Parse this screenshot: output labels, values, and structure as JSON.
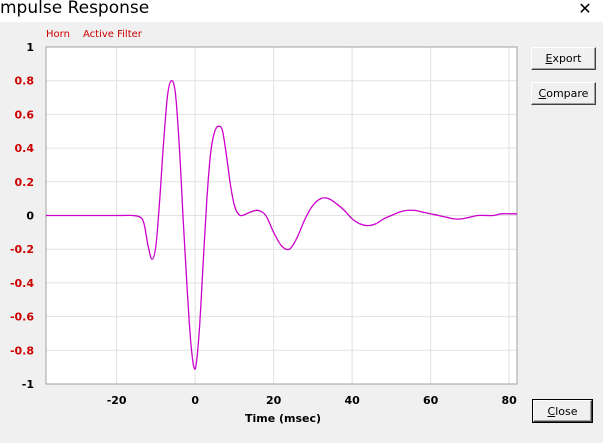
{
  "window": {
    "title": "mpulse Response",
    "close_glyph": "✕"
  },
  "legend": {
    "items": [
      {
        "label": "Horn",
        "color": "#cc0000"
      },
      {
        "label": "Active Filter",
        "color": "#cc0000"
      }
    ]
  },
  "buttons": {
    "export_label": "Export",
    "compare_label": "Compare",
    "close_label": "Close"
  },
  "chart_data": {
    "type": "line",
    "title": "",
    "xlabel": "Time (msec)",
    "ylabel": "",
    "xlim": [
      -38,
      82
    ],
    "ylim": [
      -1,
      1
    ],
    "x_ticks": [
      -20,
      0,
      20,
      40,
      60,
      80
    ],
    "y_ticks": [
      1,
      0.8,
      0.6,
      0.4,
      0.2,
      0,
      -0.2,
      -0.4,
      -0.6,
      -0.8,
      -1
    ],
    "y_tick_labels": [
      "1",
      "0.8",
      "0.6",
      "0.4",
      "0.2",
      "0",
      "-0.2",
      "-0.4",
      "-0.6",
      "-0.8",
      "-1"
    ],
    "y_tick_colors": [
      "#000000",
      "#cc0000",
      "#cc0000",
      "#cc0000",
      "#cc0000",
      "#000000",
      "#cc0000",
      "#cc0000",
      "#cc0000",
      "#cc0000",
      "#000000"
    ],
    "grid": true,
    "series": [
      {
        "color": "#cc00cc",
        "x": [
          -38,
          -20,
          -16,
          -14,
          -13,
          -12,
          -11,
          -10,
          -9,
          -8,
          -7,
          -6,
          -5,
          -4,
          -3,
          -2,
          -1,
          0,
          1,
          2,
          3,
          4,
          5,
          6,
          7,
          8,
          9,
          10,
          11,
          12,
          14,
          16,
          18,
          20,
          22,
          24,
          26,
          28,
          30,
          32,
          34,
          36,
          38,
          40,
          42,
          44,
          46,
          48,
          50,
          52,
          54,
          56,
          58,
          60,
          62,
          64,
          66,
          68,
          70,
          72,
          74,
          76,
          78,
          80,
          82
        ],
        "y": [
          0,
          0,
          0,
          -0.01,
          -0.05,
          -0.18,
          -0.26,
          -0.18,
          0.1,
          0.45,
          0.72,
          0.8,
          0.72,
          0.4,
          -0.05,
          -0.45,
          -0.78,
          -0.91,
          -0.7,
          -0.3,
          0.1,
          0.38,
          0.5,
          0.53,
          0.5,
          0.35,
          0.18,
          0.06,
          0.01,
          0.0,
          0.02,
          0.03,
          0.0,
          -0.1,
          -0.18,
          -0.2,
          -0.13,
          -0.02,
          0.06,
          0.1,
          0.1,
          0.07,
          0.03,
          -0.02,
          -0.05,
          -0.06,
          -0.05,
          -0.02,
          0.0,
          0.02,
          0.03,
          0.03,
          0.02,
          0.01,
          0.0,
          -0.01,
          -0.02,
          -0.02,
          -0.01,
          0.0,
          0.0,
          0.0,
          0.01,
          0.01,
          0.01
        ]
      }
    ]
  }
}
